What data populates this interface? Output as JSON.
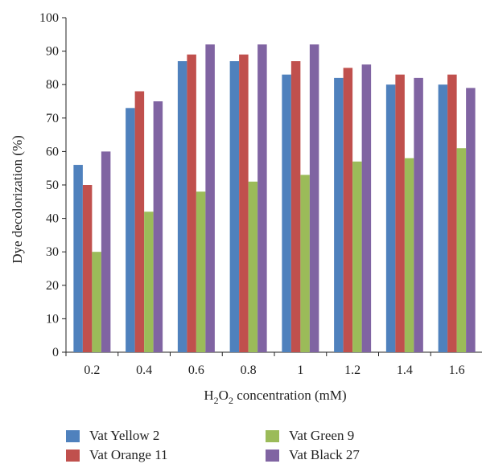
{
  "chart_data": {
    "type": "bar",
    "categories": [
      "0.2",
      "0.4",
      "0.6",
      "0.8",
      "1",
      "1.2",
      "1.4",
      "1.6"
    ],
    "series": [
      {
        "name": "Vat Yellow 2",
        "color": "#4f81bd",
        "values": [
          56,
          73,
          87,
          87,
          83,
          82,
          80,
          80
        ]
      },
      {
        "name": "Vat Orange 11",
        "color": "#c0504d",
        "values": [
          50,
          78,
          89,
          89,
          87,
          85,
          83,
          83
        ]
      },
      {
        "name": "Vat Green 9",
        "color": "#9bbb59",
        "values": [
          30,
          42,
          48,
          51,
          53,
          57,
          58,
          61
        ]
      },
      {
        "name": "Vat Black 27",
        "color": "#8064a2",
        "values": [
          60,
          75,
          92,
          92,
          92,
          86,
          82,
          79
        ]
      }
    ],
    "ylabel": "Dye decolorization (%)",
    "xlabel": {
      "prefix": "H",
      "sub1": "2",
      "mid": "O",
      "sub2": "2",
      "suffix": " concentration (mM)"
    },
    "ylim": [
      0,
      100
    ],
    "yticks": [
      "0",
      "10",
      "20",
      "30",
      "40",
      "50",
      "60",
      "70",
      "80",
      "90",
      "100"
    ],
    "grid": false,
    "legend_position": "bottom"
  }
}
